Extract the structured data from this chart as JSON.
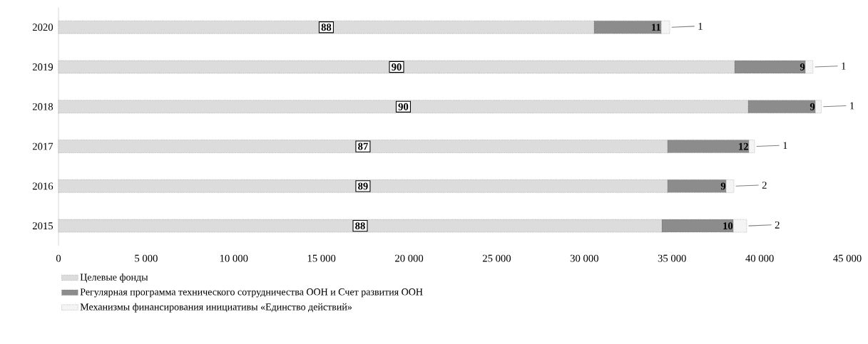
{
  "chart_data": {
    "type": "bar",
    "orientation": "horizontal",
    "stacked": true,
    "categories": [
      "2020",
      "2019",
      "2018",
      "2017",
      "2016",
      "2015"
    ],
    "series": [
      {
        "name": "Целевые фонды",
        "color": "#dcdcdc",
        "values": [
          30550,
          38570,
          39340,
          34740,
          34740,
          34420
        ]
      },
      {
        "name": "Регулярная программа технического сотрудничества ООН и Счет развития ООН",
        "color": "#8c8c8c",
        "values": [
          3830,
          4030,
          3830,
          4640,
          3340,
          4070
        ]
      },
      {
        "name": "Механизмы финансирования инициативы «Единство действий»",
        "color": "#f4f4f4",
        "values": [
          490,
          440,
          350,
          330,
          450,
          770
        ]
      }
    ],
    "annotations": [
      {
        "text": "88",
        "x": 15275,
        "y": "2020"
      },
      {
        "text": "11",
        "x": 34380,
        "y": "2020"
      },
      {
        "text": "1",
        "x": 34870,
        "y": "2020"
      },
      {
        "text": "90",
        "x": 19285,
        "y": "2019"
      },
      {
        "text": "9",
        "x": 42600,
        "y": "2019"
      },
      {
        "text": "1",
        "x": 43040,
        "y": "2019"
      },
      {
        "text": "90",
        "x": 19670,
        "y": "2018"
      },
      {
        "text": "9",
        "x": 43170,
        "y": "2018"
      },
      {
        "text": "1",
        "x": 43520,
        "y": "2018"
      },
      {
        "text": "87",
        "x": 17370,
        "y": "2017"
      },
      {
        "text": "12",
        "x": 39380,
        "y": "2017"
      },
      {
        "text": "1",
        "x": 39710,
        "y": "2017"
      },
      {
        "text": "89",
        "x": 17370,
        "y": "2016"
      },
      {
        "text": "9",
        "x": 38080,
        "y": "2016"
      },
      {
        "text": "2",
        "x": 38530,
        "y": "2016"
      },
      {
        "text": "88",
        "x": 17210,
        "y": "2015"
      },
      {
        "text": "10",
        "x": 38490,
        "y": "2015"
      },
      {
        "text": "2",
        "x": 39260,
        "y": "2015"
      }
    ],
    "xlim": [
      0,
      45000
    ],
    "xticks": [
      0,
      {
        "value": 5000,
        "label": "5 000"
      },
      {
        "value": 10000,
        "label": "10 000"
      },
      {
        "value": 15000,
        "label": "15 000"
      },
      {
        "value": 20000,
        "label": "20 000"
      },
      {
        "value": 25000,
        "label": "25 000"
      },
      {
        "value": 30000,
        "label": "30 000"
      },
      {
        "value": 35000,
        "label": "35 000"
      },
      {
        "value": 40000,
        "label": "40 000"
      },
      {
        "value": 45000,
        "label": "45 000"
      }
    ],
    "legend": "bottom"
  }
}
